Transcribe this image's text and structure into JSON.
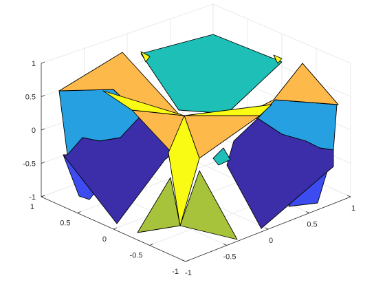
{
  "chart_data": {
    "type": "surface3d",
    "title": "",
    "xlabel": "",
    "ylabel": "",
    "zlabel": "",
    "grid": true,
    "xlim": [
      -1,
      1
    ],
    "ylim": [
      -1,
      1
    ],
    "zlim": [
      -1,
      1
    ],
    "x_ticks": [
      "-1",
      "-0.5",
      "0",
      "0.5",
      "1"
    ],
    "y_ticks": [
      "1",
      "0.5",
      "0",
      "-0.5",
      "-1"
    ],
    "z_ticks": [
      "1",
      "0.5",
      "0",
      "-0.5",
      "-1"
    ],
    "colormap": "parula",
    "face_colors": {
      "teal": "#1dbfb6",
      "light-orange": "#fdb94a",
      "sky-blue": "#26a0e0",
      "deep-indigo": "#3c2ea8",
      "yellow": "#f9fb15",
      "olive-green": "#a7c23b",
      "royal-blue": "#3d4cf0"
    },
    "edge_color": "#000000"
  }
}
